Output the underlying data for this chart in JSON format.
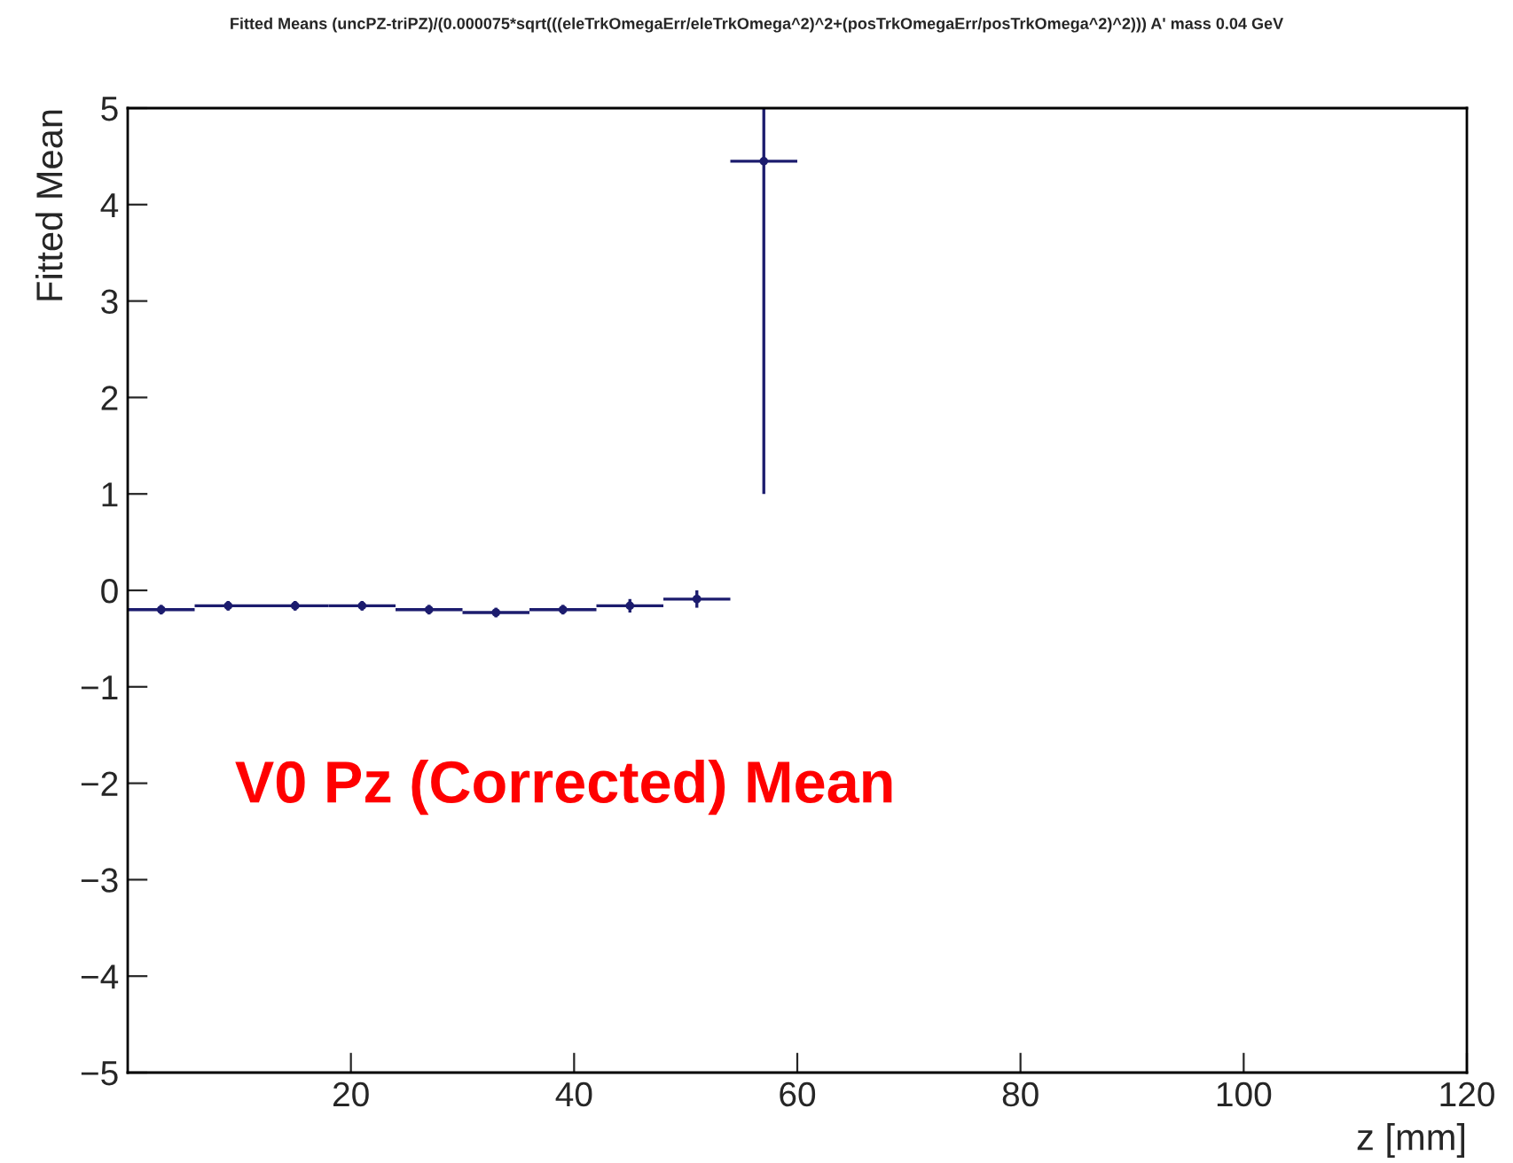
{
  "chart_data": {
    "type": "scatter",
    "title": "Fitted Means (uncPZ-triPZ)/(0.000075*sqrt(((eleTrkOmegaErr/eleTrkOmega^2)^2+(posTrkOmegaErr/posTrkOmega^2)^2))) A' mass 0.04 GeV",
    "xlabel": "z [mm]",
    "ylabel": "Fitted Mean",
    "annotations": [
      "V0 Pz (Corrected) Mean"
    ],
    "series": [
      {
        "color": "#1c1c6e",
        "x": [
          3,
          9,
          15,
          21,
          27,
          33,
          39,
          45,
          51,
          57
        ],
        "values": [
          -0.2,
          -0.16,
          -0.16,
          -0.16,
          -0.2,
          -0.23,
          -0.2,
          -0.16,
          -0.09,
          4.45
        ],
        "xerrors": [
          3,
          3,
          3,
          3,
          3,
          3,
          3,
          3,
          3,
          3
        ],
        "errors": [
          0.05,
          0.05,
          0.05,
          0.05,
          0.05,
          0.05,
          0.05,
          0.07,
          0.09,
          [
            1,
            5
          ]
        ]
      }
    ],
    "xlim": [
      0,
      120
    ],
    "xticks": [
      20,
      40,
      60,
      80,
      100,
      120
    ],
    "ylim": [
      -5,
      5
    ],
    "yticks": [
      {
        "value": -5,
        "label": "−5"
      },
      {
        "value": -4,
        "label": "−4"
      },
      {
        "value": -3,
        "label": "−3"
      },
      {
        "value": -2,
        "label": "−2"
      },
      {
        "value": -1,
        "label": "−1"
      },
      0,
      1,
      2,
      3,
      4,
      5
    ],
    "grid": false,
    "legend": false
  }
}
